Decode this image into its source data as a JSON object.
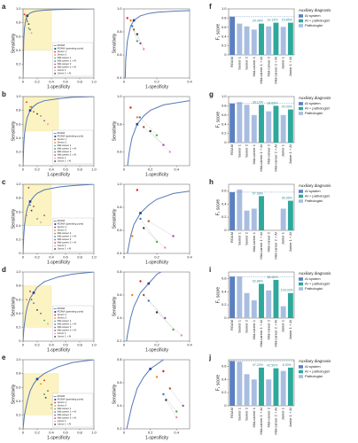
{
  "chart_data": [
    {
      "type": "roc",
      "panel": "a",
      "xlabel": "1-specificity",
      "ylabel": "Sensitivity",
      "xlim": [
        0,
        1
      ],
      "ylim": [
        0,
        1
      ],
      "xticks": [
        0,
        0.2,
        0.4,
        0.6,
        0.8,
        {
          "value": 1,
          "label": "1.0"
        }
      ],
      "yticks": [
        0,
        0.2,
        0.4,
        0.6,
        0.8,
        {
          "value": 1,
          "label": "1.0"
        }
      ],
      "curve": {
        "name": "ROAM",
        "color": "#5577b8",
        "x": [
          0,
          0.01,
          0.02,
          0.04,
          0.06,
          0.1,
          0.15,
          0.2,
          0.3,
          0.5,
          0.7,
          1
        ],
        "y": [
          0,
          0.55,
          0.72,
          0.85,
          0.9,
          0.94,
          0.96,
          0.97,
          0.98,
          0.99,
          0.995,
          1
        ]
      },
      "operating_point": {
        "name": "ROAM (operating point)",
        "color": "#1f3f8f",
        "x": 0.06,
        "y": 0.9
      },
      "zoom": {
        "xlim": [
          0,
          0.4
        ],
        "ylim": [
          0.4,
          1
        ],
        "xticks": [
          0,
          0.2,
          0.4
        ],
        "yticks": [
          0.4,
          0.6,
          0.8,
          {
            "value": 1,
            "label": "1.0"
          }
        ]
      },
      "series": [
        {
          "name": "Senior 1",
          "color": "#e41a1c",
          "x": 0.02,
          "y": 0.92
        },
        {
          "name": "Senior 2",
          "color": "#ff7f00",
          "x": 0.04,
          "y": 0.9
        },
        {
          "name": "Mid-career 1",
          "color": "#4daf4a",
          "x": 0.08,
          "y": 0.72
        },
        {
          "name": "Mid-career 1 + AI",
          "color": "#377eb8",
          "x": 0.05,
          "y": 0.85
        },
        {
          "name": "Mid-career 2",
          "color": "#984ea3",
          "x": 0.1,
          "y": 0.7
        },
        {
          "name": "Mid-career 2 + AI",
          "color": "#a65628",
          "x": 0.06,
          "y": 0.82
        },
        {
          "name": "Junior 1",
          "color": "#f781bf",
          "x": 0.12,
          "y": 0.65
        },
        {
          "name": "Junior 1 + AI",
          "color": "#333333",
          "x": 0.08,
          "y": 0.78
        }
      ]
    },
    {
      "type": "roc",
      "panel": "b",
      "xlabel": "1-specificity",
      "ylabel": "Sensitivity",
      "xlim": [
        0,
        1
      ],
      "ylim": [
        0,
        1
      ],
      "xticks": [
        0,
        0.2,
        0.4,
        0.6,
        0.8,
        {
          "value": 1,
          "label": "1.0"
        }
      ],
      "yticks": [
        0,
        0.2,
        0.4,
        0.6,
        0.8,
        {
          "value": 1,
          "label": "1.0"
        }
      ],
      "curve": {
        "name": "ROAM",
        "color": "#5577b8",
        "x": [
          0,
          0.01,
          0.02,
          0.04,
          0.06,
          0.1,
          0.15,
          0.2,
          0.3,
          0.5,
          0.7,
          1
        ],
        "y": [
          0,
          0.3,
          0.45,
          0.6,
          0.7,
          0.8,
          0.86,
          0.9,
          0.94,
          0.97,
          0.99,
          1
        ]
      },
      "operating_point": {
        "name": "ROAM (operating point)",
        "color": "#1f3f8f",
        "x": 0.1,
        "y": 0.8
      },
      "zoom": {
        "xlim": [
          0,
          0.5
        ],
        "ylim": [
          0.5,
          1
        ],
        "xticks": [
          0,
          0.2,
          0.4
        ],
        "yticks": [
          0.6,
          0.8,
          {
            "value": 1,
            "label": "1.0"
          }
        ]
      },
      "series": [
        {
          "name": "Senior 1",
          "color": "#e41a1c",
          "x": 0.05,
          "y": 0.92
        },
        {
          "name": "Senior 2",
          "color": "#ff7f00",
          "x": 0.1,
          "y": 0.85
        },
        {
          "name": "Mid-career 1",
          "color": "#4daf4a",
          "x": 0.25,
          "y": 0.72
        },
        {
          "name": "Mid-career 1 + AI",
          "color": "#377eb8",
          "x": 0.12,
          "y": 0.85
        },
        {
          "name": "Mid-career 2",
          "color": "#984ea3",
          "x": 0.3,
          "y": 0.65
        },
        {
          "name": "Mid-career 2 + AI",
          "color": "#a65628",
          "x": 0.15,
          "y": 0.78
        },
        {
          "name": "Junior 1",
          "color": "#f781bf",
          "x": 0.35,
          "y": 0.6
        },
        {
          "name": "Junior 1 + AI",
          "color": "#333333",
          "x": 0.2,
          "y": 0.75
        }
      ]
    },
    {
      "type": "roc",
      "panel": "c",
      "xlabel": "1-specificity",
      "ylabel": "Sensitivity",
      "xlim": [
        0,
        1
      ],
      "ylim": [
        0,
        1
      ],
      "xticks": [
        0,
        0.2,
        0.4,
        0.6,
        0.8,
        {
          "value": 1,
          "label": "1.0"
        }
      ],
      "yticks": [
        0,
        0.2,
        0.4,
        0.6,
        0.8,
        {
          "value": 1,
          "label": "1.0"
        }
      ],
      "curve": {
        "name": "ROAM",
        "color": "#5577b8",
        "x": [
          0,
          0.01,
          0.02,
          0.04,
          0.06,
          0.1,
          0.15,
          0.2,
          0.3,
          0.5,
          0.7,
          1
        ],
        "y": [
          0,
          0.25,
          0.4,
          0.55,
          0.65,
          0.75,
          0.82,
          0.87,
          0.92,
          0.96,
          0.98,
          1
        ]
      },
      "operating_point": {
        "name": "ROAM (operating point)",
        "color": "#1f3f8f",
        "x": 0.1,
        "y": 0.75
      },
      "zoom": {
        "xlim": [
          0,
          0.4
        ],
        "ylim": [
          0.4,
          1
        ],
        "xticks": [
          0,
          0.2,
          0.4
        ],
        "yticks": [
          0.4,
          0.6,
          0.8,
          {
            "value": 1,
            "label": "1.0"
          }
        ]
      },
      "series": [
        {
          "name": "Senior 1",
          "color": "#e41a1c",
          "x": 0.08,
          "y": 0.95
        },
        {
          "name": "Senior 2",
          "color": "#ff7f00",
          "x": 0.05,
          "y": 0.55
        },
        {
          "name": "Mid-career 1",
          "color": "#4daf4a",
          "x": 0.2,
          "y": 0.5
        },
        {
          "name": "Mid-career 1 + AI",
          "color": "#377eb8",
          "x": 0.1,
          "y": 0.7
        },
        {
          "name": "Mid-career 2",
          "color": "#984ea3",
          "x": 0.3,
          "y": 0.55
        },
        {
          "name": "Mid-career 2 + AI",
          "color": "#a65628",
          "x": 0.15,
          "y": 0.68
        },
        {
          "name": "Junior 1",
          "color": "#f781bf",
          "x": 0.25,
          "y": 0.45
        },
        {
          "name": "Junior 1 + AI",
          "color": "#333333",
          "x": 0.12,
          "y": 0.62
        }
      ]
    },
    {
      "type": "roc",
      "panel": "d",
      "xlabel": "1-specificity",
      "ylabel": "Sensitivity",
      "xlim": [
        0,
        1
      ],
      "ylim": [
        0,
        1
      ],
      "xticks": [
        0,
        0.2,
        0.4,
        0.6,
        0.8,
        {
          "value": 1,
          "label": "1.0"
        }
      ],
      "yticks": [
        0,
        0.2,
        0.4,
        0.6,
        0.8,
        {
          "value": 1,
          "label": "1.0"
        }
      ],
      "curve": {
        "name": "ROAM",
        "color": "#5577b8",
        "x": [
          0,
          0.01,
          0.02,
          0.04,
          0.06,
          0.1,
          0.15,
          0.2,
          0.3,
          0.5,
          0.7,
          1
        ],
        "y": [
          0,
          0.15,
          0.25,
          0.4,
          0.5,
          0.62,
          0.7,
          0.78,
          0.86,
          0.93,
          0.97,
          1
        ]
      },
      "operating_point": {
        "name": "ROAM (operating point)",
        "color": "#1f3f8f",
        "x": 0.15,
        "y": 0.7
      },
      "zoom": {
        "xlim": [
          0,
          0.4
        ],
        "ylim": [
          0.2,
          0.8
        ],
        "xticks": [
          0,
          0.2,
          0.4
        ],
        "yticks": [
          0.2,
          0.4,
          0.6,
          0.8
        ]
      },
      "series": [
        {
          "name": "Senior 1",
          "color": "#e41a1c",
          "x": 0.1,
          "y": 0.72
        },
        {
          "name": "Senior 2",
          "color": "#ff7f00",
          "x": 0.05,
          "y": 0.6
        },
        {
          "name": "Mid-career 1",
          "color": "#4daf4a",
          "x": 0.3,
          "y": 0.3
        },
        {
          "name": "Mid-career 1 + AI",
          "color": "#377eb8",
          "x": 0.15,
          "y": 0.55
        },
        {
          "name": "Mid-career 2",
          "color": "#984ea3",
          "x": 0.25,
          "y": 0.4
        },
        {
          "name": "Mid-career 2 + AI",
          "color": "#a65628",
          "x": 0.12,
          "y": 0.6
        },
        {
          "name": "Junior 1",
          "color": "#f781bf",
          "x": 0.35,
          "y": 0.25
        },
        {
          "name": "Junior 1 + AI",
          "color": "#333333",
          "x": 0.2,
          "y": 0.45
        }
      ]
    },
    {
      "type": "roc",
      "panel": "e",
      "xlabel": "1-specificity",
      "ylabel": "Sensitivity",
      "xlim": [
        0,
        1
      ],
      "ylim": [
        0,
        1
      ],
      "xticks": [
        0,
        0.2,
        0.4,
        0.6,
        0.8,
        {
          "value": 1,
          "label": "1.0"
        }
      ],
      "yticks": [
        0,
        0.2,
        0.4,
        0.6,
        0.8,
        {
          "value": 1,
          "label": "1.0"
        }
      ],
      "curve": {
        "name": "ROAM",
        "color": "#5577b8",
        "x": [
          0,
          0.01,
          0.02,
          0.04,
          0.06,
          0.1,
          0.15,
          0.2,
          0.3,
          0.5,
          0.7,
          1
        ],
        "y": [
          0,
          0.1,
          0.2,
          0.3,
          0.4,
          0.55,
          0.65,
          0.72,
          0.8,
          0.9,
          0.96,
          1
        ]
      },
      "operating_point": {
        "name": "ROAM (operating point)",
        "color": "#1f3f8f",
        "x": 0.2,
        "y": 0.72
      },
      "zoom": {
        "xlim": [
          0,
          0.5
        ],
        "ylim": [
          0.2,
          0.8
        ],
        "xticks": [
          0,
          0.2,
          0.4
        ],
        "yticks": [
          0.2,
          0.4,
          0.6,
          0.8
        ]
      },
      "series": [
        {
          "name": "Senior 1",
          "color": "#e41a1c",
          "x": 0.3,
          "y": 0.7
        },
        {
          "name": "Senior 2",
          "color": "#ff7f00",
          "x": 0.25,
          "y": 0.65
        },
        {
          "name": "Mid-career 1",
          "color": "#4daf4a",
          "x": 0.4,
          "y": 0.35
        },
        {
          "name": "Mid-career 1 + AI",
          "color": "#377eb8",
          "x": 0.3,
          "y": 0.5
        },
        {
          "name": "Mid-career 2",
          "color": "#984ea3",
          "x": 0.45,
          "y": 0.4
        },
        {
          "name": "Mid-career 2 + AI",
          "color": "#a65628",
          "x": 0.35,
          "y": 0.55
        },
        {
          "name": "Junior 1",
          "color": "#f781bf",
          "x": 0.4,
          "y": 0.3
        },
        {
          "name": "Junior 1 + AI",
          "color": "#333333",
          "x": 0.32,
          "y": 0.45
        }
      ]
    },
    {
      "type": "bar",
      "panel": "f",
      "ylabel": "F₁ score",
      "legend_title": "Auxiliary diagnosis",
      "categories": [
        "ROAM",
        "Senior 1",
        "Senior 2",
        "Mid-career 1",
        "Mid-career 1 + AI",
        "Mid-career 2",
        "Mid-career 2 + AI",
        "Junior 1",
        "Junior 1 + AI"
      ],
      "ylim": [
        0,
        1
      ],
      "yticks": [
        0,
        0.2,
        0.4,
        0.6,
        0.8,
        {
          "value": 1,
          "label": "1.0"
        }
      ],
      "series": [
        {
          "name": "AI system",
          "color": "#5b80c0",
          "values": [
            0.83,
            null,
            null,
            null,
            null,
            null,
            null,
            null,
            null
          ]
        },
        {
          "name": "AI + pathologist",
          "color": "#2fa89c",
          "values": [
            null,
            null,
            null,
            null,
            0.68,
            null,
            0.7,
            null,
            0.7
          ]
        },
        {
          "name": "Pathologist",
          "color": "#a8bde0",
          "values": [
            null,
            0.68,
            0.62,
            0.55,
            null,
            0.62,
            null,
            0.61,
            null
          ]
        }
      ],
      "annotations": [
        "24.49%",
        "13.13%",
        "15.85%"
      ]
    },
    {
      "type": "bar",
      "panel": "g",
      "ylabel": "F₁ score",
      "legend_title": "Auxiliary diagnosis",
      "categories": [
        "ROAM",
        "Senior 1",
        "Senior 2",
        "Mid-career 1",
        "Mid-career 1 + AI",
        "Mid-career 2",
        "Mid-career 2 + AI",
        "Junior 1",
        "Junior 1 + AI"
      ],
      "ylim": [
        0,
        1
      ],
      "yticks": [
        0,
        0.2,
        0.4,
        0.6,
        0.8,
        {
          "value": 1,
          "label": "1.0"
        }
      ],
      "series": [
        {
          "name": "AI system",
          "color": "#5b80c0",
          "values": [
            0.85,
            null,
            null,
            null,
            null,
            null,
            null,
            null,
            null
          ]
        },
        {
          "name": "AI + pathologist",
          "color": "#2fa89c",
          "values": [
            null,
            null,
            null,
            null,
            0.82,
            null,
            0.8,
            null,
            0.72
          ]
        },
        {
          "name": "Pathologist",
          "color": "#a8bde0",
          "values": [
            null,
            0.88,
            0.82,
            0.6,
            null,
            0.68,
            null,
            0.6,
            null
          ]
        }
      ],
      "annotations": [
        "36.12%",
        "18.83%",
        "20.03%"
      ]
    },
    {
      "type": "bar",
      "panel": "h",
      "ylabel": "F₁ score",
      "legend_title": "Auxiliary diagnosis",
      "categories": [
        "ROAM",
        "Senior 1",
        "Senior 2",
        "Mid-career 1",
        "Mid-career 1 + AI",
        "Mid-career 2",
        "Mid-career 2 + AI",
        "Junior 1",
        "Junior 1 + AI"
      ],
      "ylim": [
        0,
        0.7
      ],
      "yticks": [
        0,
        0.2,
        0.4,
        0.6
      ],
      "series": [
        {
          "name": "AI system",
          "color": "#5b80c0",
          "values": [
            0.58,
            null,
            null,
            null,
            null,
            null,
            null,
            null,
            null
          ]
        },
        {
          "name": "AI + pathologist",
          "color": "#2fa89c",
          "values": [
            null,
            null,
            null,
            null,
            0.52,
            null,
            null,
            null,
            0.45
          ]
        },
        {
          "name": "Pathologist",
          "color": "#a8bde0",
          "values": [
            null,
            0.62,
            0.3,
            0.33,
            null,
            null,
            null,
            0.33,
            null
          ]
        }
      ],
      "annotations": [
        "57.58%",
        "36.36%"
      ]
    },
    {
      "type": "bar",
      "panel": "i",
      "ylabel": "F₁ score",
      "legend_title": "Auxiliary diagnosis",
      "categories": [
        "ROAM",
        "Senior 1",
        "Senior 2",
        "Mid-career 1",
        "Mid-career 1 + AI",
        "Mid-career 2",
        "Mid-career 2 + AI",
        "Junior 1",
        "Junior 1 + AI"
      ],
      "ylim": [
        0,
        0.7
      ],
      "yticks": [
        0,
        0.2,
        0.4,
        0.6
      ],
      "series": [
        {
          "name": "AI system",
          "color": "#5b80c0",
          "values": [
            0.63,
            null,
            null,
            null,
            null,
            null,
            null,
            null,
            null
          ]
        },
        {
          "name": "AI + pathologist",
          "color": "#2fa89c",
          "values": [
            null,
            null,
            null,
            null,
            0.52,
            null,
            0.58,
            null,
            0.38
          ]
        },
        {
          "name": "Pathologist",
          "color": "#a8bde0",
          "values": [
            null,
            0.63,
            0.38,
            0.27,
            null,
            0.42,
            null,
            0.18,
            null
          ]
        }
      ],
      "annotations": [
        "92.86%",
        "38.46%",
        "103.03%"
      ]
    },
    {
      "type": "bar",
      "panel": "j",
      "ylabel": "F₁ score",
      "legend_title": "Auxiliary diagnosis",
      "categories": [
        "ROAM",
        "Senior 1",
        "Senior 2",
        "Mid-career 1",
        "Mid-career 1 + AI",
        "Mid-career 2",
        "Mid-career 2 + AI",
        "Junior 1",
        "Junior 1 + AI"
      ],
      "ylim": [
        0,
        0.7
      ],
      "yticks": [
        0,
        0.2,
        0.4,
        0.6
      ],
      "series": [
        {
          "name": "AI system",
          "color": "#5b80c0",
          "values": [
            0.68,
            null,
            null,
            null,
            null,
            null,
            null,
            null,
            null
          ]
        },
        {
          "name": "AI + pathologist",
          "color": "#2fa89c",
          "values": [
            null,
            null,
            null,
            null,
            0.58,
            null,
            0.57,
            null,
            0.58
          ]
        },
        {
          "name": "Pathologist",
          "color": "#a8bde0",
          "values": [
            null,
            0.67,
            0.48,
            0.4,
            null,
            0.4,
            null,
            0.53,
            null
          ]
        }
      ],
      "annotations": [
        "47.22%",
        "42.50%",
        "8.33%"
      ]
    }
  ]
}
